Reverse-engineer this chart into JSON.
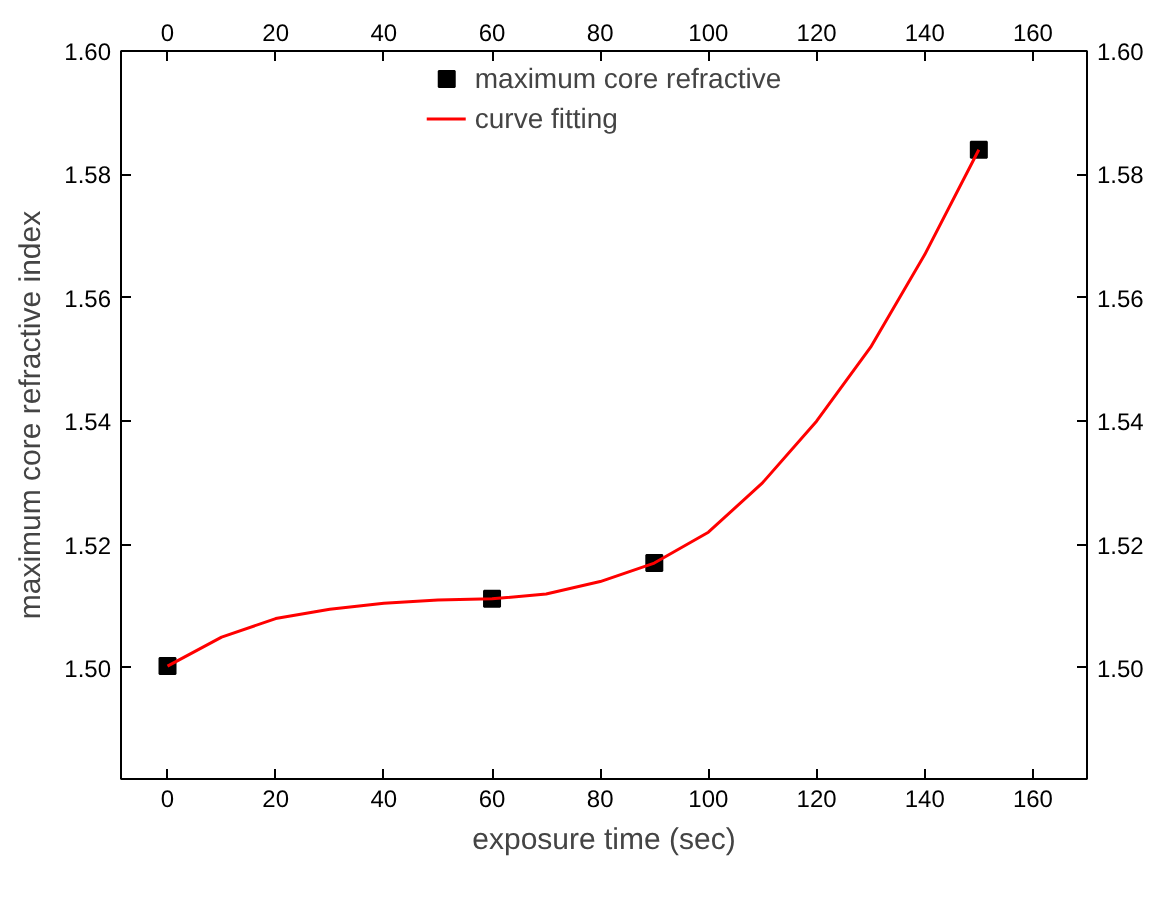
{
  "chart_data": {
    "type": "scatter",
    "xlabel": "exposure time (sec)",
    "ylabel": "maximum core refractive index",
    "xlim": [
      -8.6,
      170
    ],
    "xticks": [
      0,
      20,
      40,
      60,
      80,
      100,
      120,
      140,
      160
    ],
    "x2lim": [
      -8.6,
      170
    ],
    "x2ticks": [
      0,
      20,
      40,
      60,
      80,
      100,
      120,
      140,
      160
    ],
    "ylim": [
      1.482,
      1.6
    ],
    "yticks": [
      {
        "value": 1.5,
        "label": "1.50"
      },
      {
        "value": 1.52,
        "label": "1.52"
      },
      {
        "value": 1.54,
        "label": "1.54"
      },
      {
        "value": 1.56,
        "label": "1.56"
      },
      {
        "value": 1.58,
        "label": "1.58"
      },
      {
        "value": 1.6,
        "label": "1.60"
      }
    ],
    "y2lim": [
      1.482,
      1.6
    ],
    "y2ticks": [
      {
        "value": 1.5,
        "label": "1.50"
      },
      {
        "value": 1.52,
        "label": "1.52"
      },
      {
        "value": 1.54,
        "label": "1.54"
      },
      {
        "value": 1.56,
        "label": "1.56"
      },
      {
        "value": 1.58,
        "label": "1.58"
      },
      {
        "value": 1.6,
        "label": "1.60"
      }
    ],
    "series": [
      {
        "name": "maximum core refractive",
        "color": "#000000",
        "marker": "square",
        "x": [
          0,
          60,
          90,
          150
        ],
        "values": [
          1.5003,
          1.5112,
          1.517,
          1.584
        ]
      },
      {
        "name": "curve fitting",
        "type": "line",
        "color": "#ff0000",
        "line_style": "solid",
        "x": [
          0,
          10,
          20,
          30,
          40,
          50,
          60,
          70,
          80,
          90,
          100,
          110,
          120,
          130,
          140,
          150
        ],
        "values": [
          1.5003,
          1.505,
          1.508,
          1.5095,
          1.5105,
          1.511,
          1.5112,
          1.512,
          1.514,
          1.517,
          1.522,
          1.53,
          1.54,
          1.552,
          1.567,
          1.584
        ]
      }
    ],
    "legend": "top"
  }
}
